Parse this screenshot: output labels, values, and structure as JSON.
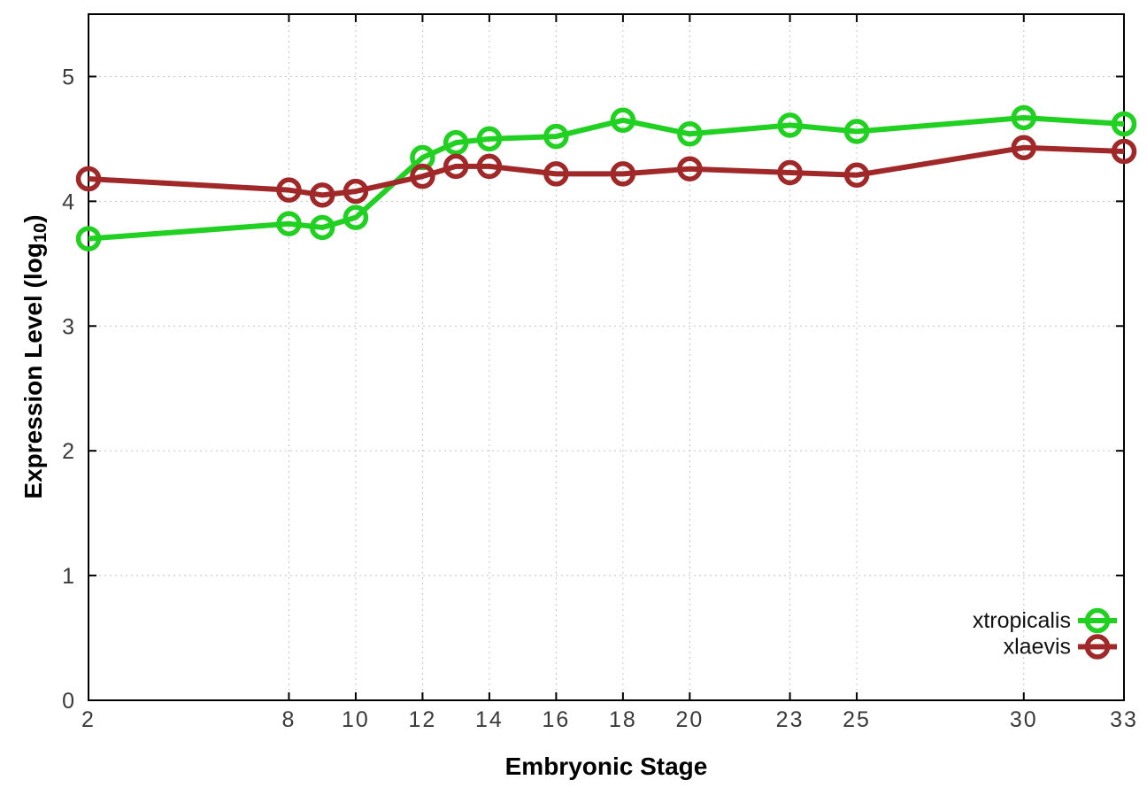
{
  "figure": {
    "background": "#ffffff",
    "border_color": "#000000",
    "grid_color": "#c4c4c4",
    "tick_label_color": "#3a3a3a"
  },
  "chart_data": {
    "type": "line",
    "title": "",
    "xlabel": "Embryonic Stage",
    "ylabel": "Expression Level (log10)",
    "ylabel_parts": {
      "pre": "Expression Level (log",
      "sub": "10",
      "post": ")"
    },
    "xlim": [
      2,
      33
    ],
    "ylim": [
      0,
      5.5
    ],
    "x_ticks": [
      2,
      8,
      10,
      12,
      14,
      16,
      18,
      20,
      23,
      25,
      30,
      33
    ],
    "y_ticks": [
      0,
      1,
      2,
      3,
      4,
      5
    ],
    "grid": true,
    "legend_position": "inside-bottom-right",
    "x": [
      2,
      8,
      9,
      10,
      12,
      13,
      14,
      16,
      18,
      20,
      23,
      25,
      30,
      33
    ],
    "series": [
      {
        "name": "xtropicalis",
        "color": "#21d121",
        "values": [
          3.7,
          3.82,
          3.79,
          3.87,
          4.35,
          4.47,
          4.5,
          4.52,
          4.65,
          4.54,
          4.61,
          4.56,
          4.67,
          4.62
        ]
      },
      {
        "name": "xlaevis",
        "color": "#a12828",
        "values": [
          4.18,
          4.09,
          4.05,
          4.08,
          4.2,
          4.28,
          4.28,
          4.22,
          4.22,
          4.26,
          4.23,
          4.21,
          4.43,
          4.4
        ]
      }
    ]
  }
}
